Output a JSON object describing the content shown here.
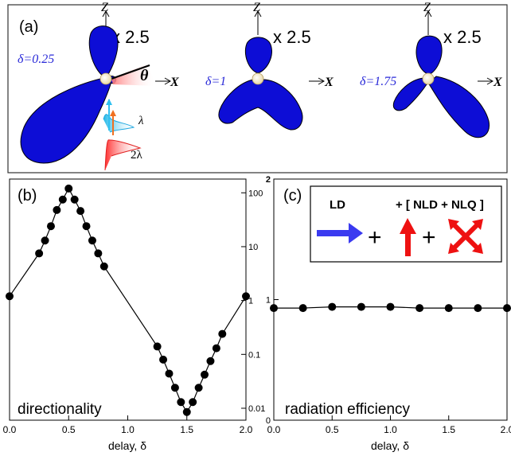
{
  "panel_a": {
    "label": "(a)",
    "scale_label": "x 2.5",
    "z_label": "Z",
    "x_label": "X",
    "theta_label": "θ",
    "lambda_label": "λ",
    "two_lambda_label": "2λ",
    "lobes": [
      {
        "delta_label": "δ=0.25"
      },
      {
        "delta_label": "δ=1"
      },
      {
        "delta_label": "δ=1.75"
      }
    ]
  },
  "legend_box": {
    "ld_label": "LD",
    "nl_label": "+ [ NLD + NLQ ]",
    "plus_symbol": "+",
    "colors": {
      "ld_arrow": "#3a3af0",
      "nl_arrow": "#ee1111"
    }
  },
  "chart_data": [
    {
      "type": "line",
      "panel_label": "(b)",
      "annotation": "directionality",
      "xlabel": "delay, δ",
      "x_ticks": [
        "0.0",
        "0.5",
        "1.0",
        "1.5",
        "2.0"
      ],
      "xlim": [
        0,
        2
      ],
      "y_scale": "log",
      "ylim": [
        0.006,
        180
      ],
      "y_ticks": [
        {
          "v": 0.01,
          "label": "0.01"
        },
        {
          "v": 0.1,
          "label": "0.1"
        },
        {
          "v": 1,
          "label": "1"
        },
        {
          "v": 10,
          "label": "10"
        },
        {
          "v": 100,
          "label": "100"
        }
      ],
      "grid": false,
      "marker_color": "#000000",
      "series": [
        {
          "x": [
            0.0,
            0.25,
            0.3,
            0.35,
            0.4,
            0.45,
            0.5,
            0.55,
            0.6,
            0.65,
            0.7,
            0.75,
            0.8,
            1.25,
            1.3,
            1.35,
            1.4,
            1.45,
            1.5,
            1.55,
            1.6,
            1.65,
            1.7,
            1.75,
            1.8,
            2.0
          ],
          "y": [
            1.2,
            7.5,
            13,
            24,
            48,
            75,
            120,
            75,
            46,
            24,
            13,
            7.5,
            4.3,
            0.14,
            0.08,
            0.044,
            0.024,
            0.013,
            0.0085,
            0.013,
            0.024,
            0.042,
            0.075,
            0.13,
            0.24,
            1.2
          ]
        }
      ]
    },
    {
      "type": "line",
      "panel_label": "(c)",
      "annotation": "radiation efficiency",
      "xlabel": "delay, δ",
      "x_ticks": [
        "0.0",
        "0.5",
        "1.0",
        "1.5",
        "2.0"
      ],
      "xlim": [
        0,
        2
      ],
      "ylim": [
        0,
        2
      ],
      "y_ticks": [
        {
          "v": 0,
          "label": "0"
        },
        {
          "v": 1,
          "label": "1"
        },
        {
          "v": 2,
          "label": "2"
        }
      ],
      "grid": false,
      "marker_color": "#000000",
      "series": [
        {
          "x": [
            0.0,
            0.25,
            0.5,
            0.75,
            1.0,
            1.25,
            1.5,
            1.75,
            2.0
          ],
          "y": [
            0.93,
            0.93,
            0.94,
            0.94,
            0.94,
            0.93,
            0.93,
            0.93,
            0.93
          ]
        }
      ]
    }
  ]
}
